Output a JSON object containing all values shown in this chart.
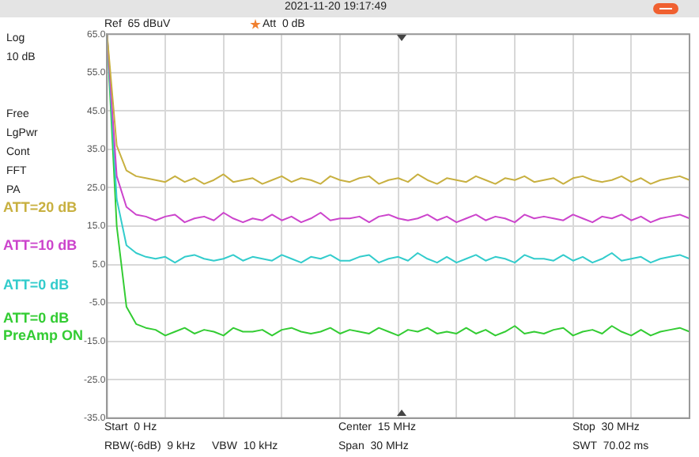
{
  "chart_data": {
    "type": "line",
    "annotations": [
      "Ref  65 dBuV",
      "Att  0 dB",
      "2021-11-20 19:17:49",
      "Log",
      "10 dB",
      "Free",
      "LgPwr",
      "Cont",
      "FFT",
      "PA",
      "Start  0 Hz",
      "RBW(-6dB)  9 kHz",
      "VBW  10 kHz",
      "Center  15 MHz",
      "Span  30 MHz",
      "Stop  30 MHz",
      "SWT  70.02 ms"
    ],
    "categories": [
      null,
      null,
      null,
      null,
      null,
      null,
      null,
      null,
      null,
      null,
      null,
      null,
      null,
      null,
      null,
      null,
      null,
      null,
      null,
      null,
      null,
      null,
      null,
      null,
      null,
      null,
      null,
      null,
      null,
      null,
      null,
      null,
      null,
      null,
      null,
      null,
      null,
      null,
      null,
      null,
      null,
      null,
      null,
      null,
      null,
      null,
      null,
      null,
      null,
      null,
      null,
      null,
      null,
      null,
      null,
      null,
      null,
      null,
      null,
      null,
      null
    ],
    "series": [
      {
        "name": "ATT=20 dB",
        "color": "#c8b040",
        "values": [
          65,
          36,
          29.5,
          28,
          27.5,
          27,
          26.5,
          28,
          26.5,
          27.5,
          26,
          27,
          28.5,
          26.5,
          27,
          27.5,
          26,
          27,
          28,
          26.5,
          27.5,
          27,
          26,
          28,
          27,
          26.5,
          27.5,
          28,
          26,
          27,
          27.5,
          26.5,
          28.5,
          27,
          26,
          27.5,
          27,
          26.5,
          28,
          27,
          26,
          27.5,
          27,
          28,
          26.5,
          27,
          27.5,
          26,
          27.5,
          28,
          27,
          26.5,
          27,
          28,
          26.5,
          27.5,
          26,
          27,
          27.5,
          28,
          27
        ]
      },
      {
        "name": "ATT=10 dB",
        "color": "#cc44cc",
        "values": [
          65,
          28,
          20,
          18,
          17.5,
          16.5,
          17.5,
          18,
          16,
          17,
          17.5,
          16.5,
          18.5,
          17,
          16,
          17,
          16.5,
          18,
          16.5,
          17.5,
          16,
          17,
          18.5,
          16.5,
          17,
          17,
          17.5,
          16,
          17.5,
          18,
          17,
          16.5,
          17,
          18,
          16.5,
          17.5,
          16,
          17,
          18,
          16.5,
          17.5,
          17,
          16,
          18,
          17,
          17.5,
          17,
          16.5,
          18,
          17,
          16,
          17.5,
          17,
          18,
          16.5,
          17.5,
          16,
          17,
          17.5,
          18,
          17
        ]
      },
      {
        "name": "ATT=0 dB",
        "color": "#33cccc",
        "values": [
          65,
          22,
          10,
          8,
          7,
          6.5,
          7,
          5.5,
          7,
          7.5,
          6.5,
          6,
          6.5,
          7.5,
          6,
          7,
          6.5,
          6,
          7.5,
          6.5,
          5.5,
          7,
          6.5,
          7.5,
          6,
          6,
          7,
          7.5,
          5.5,
          6.5,
          7,
          6,
          8,
          6.5,
          5.5,
          7,
          5.5,
          6.5,
          7.5,
          6,
          7,
          6.5,
          5.5,
          7.5,
          6.5,
          6.5,
          6,
          7.5,
          6,
          7,
          5.5,
          6.5,
          8,
          6,
          6.5,
          7,
          5.5,
          6.5,
          7,
          7.5,
          6.5
        ]
      },
      {
        "name": "ATT=0 dB PreAmp ON",
        "color": "#33cc33",
        "values": [
          65,
          15,
          -6,
          -10.5,
          -11.5,
          -12,
          -13.5,
          -12.5,
          -11.5,
          -13,
          -12,
          -12.5,
          -13.5,
          -11.5,
          -12.5,
          -12.5,
          -12,
          -13.5,
          -12,
          -11.5,
          -12.5,
          -13,
          -12.5,
          -11.5,
          -13,
          -12,
          -12.5,
          -13,
          -11.5,
          -12.5,
          -13.5,
          -12,
          -12.5,
          -11.5,
          -13,
          -12.5,
          -13,
          -11.5,
          -13,
          -12,
          -13.5,
          -12.5,
          -11,
          -13,
          -12.5,
          -13,
          -12,
          -11.5,
          -13.5,
          -12.5,
          -12,
          -13,
          -11,
          -12.5,
          -13.5,
          -12,
          -13.5,
          -12.5,
          -12,
          -11.5,
          -12.5
        ]
      }
    ],
    "ylim": [
      -35,
      65
    ],
    "yticks": [
      {
        "value": -35,
        "label": "-35.0"
      },
      {
        "value": -25,
        "label": "-25.0"
      },
      {
        "value": -15,
        "label": "-15.0"
      },
      {
        "value": -5,
        "label": "-5.0"
      },
      {
        "value": 5,
        "label": "5.0"
      },
      {
        "value": 15,
        "label": "15.0"
      },
      {
        "value": 25,
        "label": "25.0"
      },
      {
        "value": 35,
        "label": "35.0"
      },
      {
        "value": 45,
        "label": "45.0"
      },
      {
        "value": 55,
        "label": "55.0"
      },
      {
        "value": 65,
        "label": "65.0"
      }
    ],
    "grid": true,
    "marker": "none",
    "line_style": "solid"
  }
}
